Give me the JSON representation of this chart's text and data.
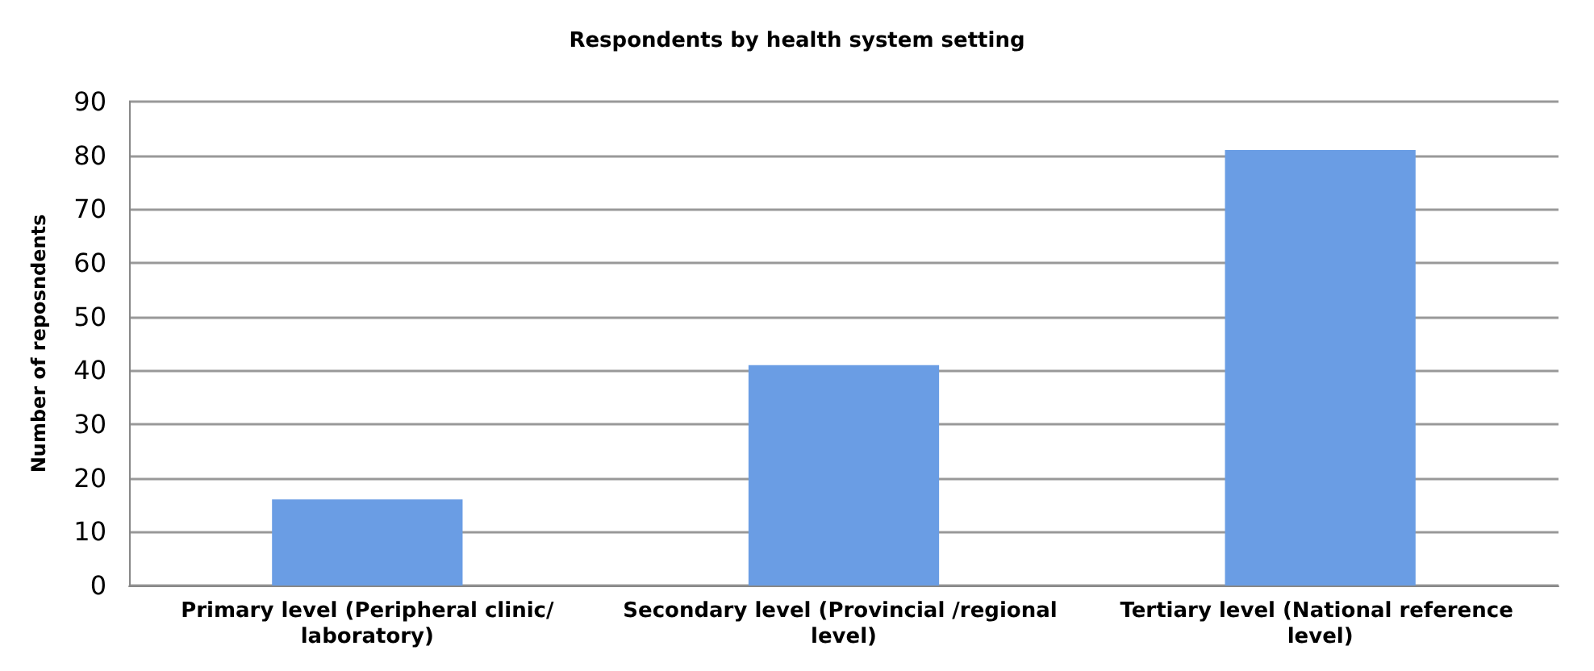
{
  "chart_data": {
    "type": "bar",
    "title": "Respondents by health system setting",
    "ylabel": "Number of reposndents",
    "categories": [
      "Primary level (Peripheral clinic/laboratory)",
      "Secondary level (Provincial /regional level)",
      "Tertiary level (National reference level)"
    ],
    "values": [
      16,
      41,
      81
    ],
    "color": "#6a9de4",
    "ylim": [
      0,
      90
    ],
    "yticks": [
      0,
      10,
      20,
      30,
      40,
      50,
      60,
      70,
      80,
      90
    ],
    "grid": "y"
  }
}
